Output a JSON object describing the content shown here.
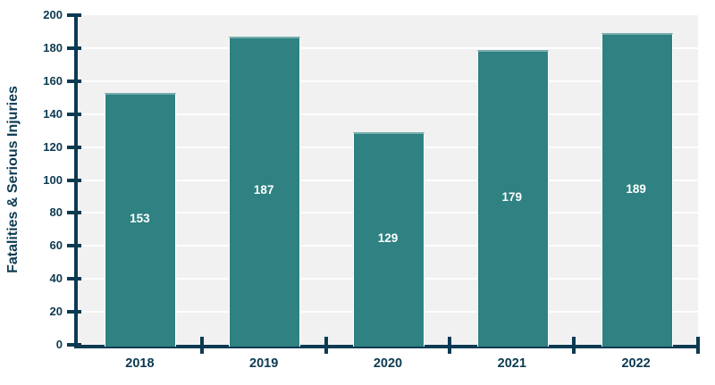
{
  "chart_data": {
    "type": "bar",
    "title": "",
    "categories": [
      "2018",
      "2019",
      "2020",
      "2021",
      "2022"
    ],
    "values": [
      153,
      187,
      129,
      179,
      189
    ],
    "bar_value_labels": [
      "153",
      "187",
      "129",
      "179",
      "189"
    ],
    "xlabel": "",
    "ylabel": "Fatalities & Serious Injuries",
    "ylim": [
      0,
      200
    ],
    "yticks": [
      0,
      20,
      40,
      60,
      80,
      100,
      120,
      140,
      160,
      180,
      200
    ],
    "grid": true,
    "legend": "none",
    "layout_hints": {
      "gridlines_horizontal_white_on_gray_panel": true,
      "value_labels_centered_inside_bars": true,
      "x_ticks_at_category_boundaries": true
    },
    "colors": {
      "bar_fill": "#2F8182",
      "bar_edge_highlight": "rgba(255,255,255,0.35)",
      "bar_side_border": "#FFFFFF",
      "axis": "#0C3A52",
      "tick_label": "#0C3A52",
      "plot_background": "#F1F1F1",
      "gridline": "#FFFFFF",
      "bar_value_label": "#FFFFFF",
      "page_background": "#FFFFFF"
    }
  }
}
